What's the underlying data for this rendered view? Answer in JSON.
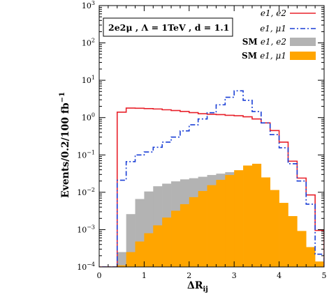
{
  "chart_data": {
    "type": "histogram",
    "xlabel": "ΔR",
    "xlabel_sub": "ij",
    "ylabel": "Events/0.2/100 fb",
    "ylabel_sup": "−1",
    "xlim": [
      0,
      5
    ],
    "ylim": [
      0.0001,
      1000
    ],
    "y_scale": "log",
    "x_ticks": [
      "0",
      "1",
      "2",
      "3",
      "4",
      "5"
    ],
    "y_ticks": [
      {
        "base": "10",
        "exp": "−4",
        "value": 0.0001
      },
      {
        "base": "10",
        "exp": "−3",
        "value": 0.001
      },
      {
        "base": "10",
        "exp": "−2",
        "value": 0.01
      },
      {
        "base": "10",
        "exp": "−1",
        "value": 0.1
      },
      {
        "base": "10",
        "exp": "0",
        "value": 1
      },
      {
        "base": "10",
        "exp": "1",
        "value": 10
      },
      {
        "base": "10",
        "exp": "2",
        "value": 100
      },
      {
        "base": "10",
        "exp": "3",
        "value": 1000
      }
    ],
    "annotation": "2e2μ ,  Λ = 1TeV , d = 1.1",
    "bin_edges": [
      -0.4,
      0.0,
      0.2,
      0.4,
      0.6,
      0.8,
      1.0,
      1.2,
      1.4,
      1.6,
      1.8,
      2.0,
      2.2,
      2.4,
      2.6,
      2.8,
      3.0,
      3.2,
      3.4,
      3.6,
      3.8,
      4.0,
      4.2,
      4.4,
      4.6,
      4.8,
      5.0
    ],
    "series": [
      {
        "name": "e1, e2",
        "style": "solid-line",
        "color": "#e8202a",
        "values": [
          0.0001,
          0.0001,
          0.0001,
          1.4,
          1.8,
          1.78,
          1.74,
          1.7,
          1.62,
          1.55,
          1.46,
          1.36,
          1.27,
          1.23,
          1.2,
          1.15,
          1.12,
          1.05,
          0.92,
          0.72,
          0.45,
          0.22,
          0.068,
          0.024,
          0.0085,
          0.00095
        ]
      },
      {
        "name": "e1, μ1",
        "style": "dash-dot-line",
        "color": "#1a3fd6",
        "values": [
          0.0001,
          0.0001,
          0.0001,
          0.021,
          0.066,
          0.1,
          0.12,
          0.16,
          0.22,
          0.3,
          0.44,
          0.64,
          0.92,
          1.35,
          2.2,
          3.5,
          5.2,
          2.9,
          1.45,
          0.72,
          0.35,
          0.155,
          0.058,
          0.02,
          0.0048,
          0.00022
        ]
      },
      {
        "name": "SM e1, e2",
        "style": "filled",
        "color": "#b3b3b3",
        "values": [
          0,
          0,
          0,
          0.00025,
          0.0026,
          0.0066,
          0.0105,
          0.0145,
          0.017,
          0.0196,
          0.0222,
          0.0238,
          0.026,
          0.029,
          0.0315,
          0.0345,
          0.031,
          0.0215,
          0.0135,
          0.0068,
          0.0034,
          0.0015,
          0.00062,
          0.00026,
          0.00012,
          0
        ]
      },
      {
        "name": "SM e1, μ1",
        "style": "filled",
        "color": "#ffa500",
        "values": [
          0,
          0,
          0,
          0.00011,
          0.00025,
          0.00048,
          0.0008,
          0.0013,
          0.0021,
          0.0032,
          0.0048,
          0.0074,
          0.0108,
          0.0155,
          0.0215,
          0.029,
          0.039,
          0.052,
          0.058,
          0.025,
          0.0115,
          0.0052,
          0.0023,
          0.00092,
          0.00034,
          0.00014
        ]
      }
    ],
    "legend": [
      {
        "label": "e1, e2",
        "prefix": "",
        "kind": "line",
        "color": "#e8202a",
        "dash": ""
      },
      {
        "label": "e1, μ1",
        "prefix": "",
        "kind": "line",
        "color": "#1a3fd6",
        "dash": "7,3,2,3"
      },
      {
        "label": "e1, e2",
        "prefix": "SM",
        "kind": "box",
        "color": "#b3b3b3",
        "dash": ""
      },
      {
        "label": "e1, μ1",
        "prefix": "SM",
        "kind": "box",
        "color": "#ffa500",
        "dash": ""
      }
    ],
    "grid": false,
    "legend_placement": "top-right"
  }
}
